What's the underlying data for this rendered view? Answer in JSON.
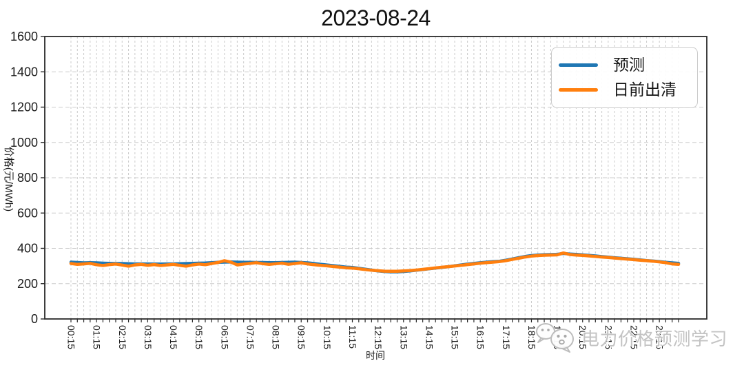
{
  "watermark": {
    "text": "电力价格预测学习",
    "icon": "wechat-icon"
  },
  "style": {
    "grid_color": "#cbcbcb",
    "spine_color": "#2a2a2a",
    "tick_text_color": "#1b1b1b",
    "legend_border_color": "#cccccc",
    "predict_color": "#1f77b4",
    "clearing_color": "#ff7f0e"
  },
  "chart_data": {
    "type": "line",
    "title": "2023-08-24",
    "xlabel": "时间",
    "ylabel": "价格(元/MWh)",
    "ylim": [
      0,
      1600
    ],
    "yticks": [
      0,
      200,
      400,
      600,
      800,
      1000,
      1200,
      1400,
      1600
    ],
    "grid": true,
    "legend_position": "upper right",
    "x": [
      "00:15",
      "00:30",
      "00:45",
      "01:00",
      "01:15",
      "01:30",
      "01:45",
      "02:00",
      "02:15",
      "02:30",
      "02:45",
      "03:00",
      "03:15",
      "03:30",
      "03:45",
      "04:00",
      "04:15",
      "04:30",
      "04:45",
      "05:00",
      "05:15",
      "05:30",
      "05:45",
      "06:00",
      "06:15",
      "06:30",
      "06:45",
      "07:00",
      "07:15",
      "07:30",
      "07:45",
      "08:00",
      "08:15",
      "08:30",
      "08:45",
      "09:00",
      "09:15",
      "09:30",
      "09:45",
      "10:00",
      "10:15",
      "10:30",
      "10:45",
      "11:00",
      "11:15",
      "11:30",
      "11:45",
      "12:00",
      "12:15",
      "12:30",
      "12:45",
      "13:00",
      "13:15",
      "13:30",
      "13:45",
      "14:00",
      "14:15",
      "14:30",
      "14:45",
      "15:00",
      "15:15",
      "15:30",
      "15:45",
      "16:00",
      "16:15",
      "16:30",
      "16:45",
      "17:00",
      "17:15",
      "17:30",
      "17:45",
      "18:00",
      "18:15",
      "18:30",
      "18:45",
      "19:00",
      "19:15",
      "19:30",
      "19:45",
      "20:00",
      "20:15",
      "20:30",
      "20:45",
      "21:00",
      "21:15",
      "21:30",
      "21:45",
      "22:00",
      "22:15",
      "22:30",
      "22:45",
      "23:00",
      "23:15",
      "23:30",
      "23:45",
      "24:00"
    ],
    "x_tick_indices": [
      0,
      4,
      8,
      12,
      16,
      20,
      24,
      28,
      32,
      36,
      40,
      44,
      48,
      52,
      56,
      60,
      64,
      68,
      72,
      76,
      80,
      84,
      88,
      92
    ],
    "x_tick_labels": [
      "00:15",
      "01:15",
      "02:15",
      "03:15",
      "04:15",
      "05:15",
      "06:15",
      "07:15",
      "08:15",
      "09:15",
      "10:15",
      "11:15",
      "12:15",
      "13:15",
      "14:15",
      "15:15",
      "16:15",
      "17:15",
      "18:15",
      "19:15",
      "20:15",
      "21:15",
      "22:15",
      "23:15"
    ],
    "series": [
      {
        "name": "预测",
        "color": "#1f77b4",
        "values": [
          322,
          320,
          318,
          319,
          318,
          316,
          315,
          314,
          314,
          313,
          312,
          312,
          312,
          311,
          311,
          312,
          312,
          313,
          314,
          315,
          316,
          317,
          319,
          321,
          322,
          323,
          322,
          321,
          321,
          320,
          320,
          319,
          319,
          320,
          321,
          322,
          320,
          318,
          314,
          310,
          306,
          302,
          298,
          294,
          292,
          287,
          282,
          277,
          272,
          269,
          267,
          267,
          269,
          272,
          276,
          280,
          284,
          288,
          292,
          296,
          301,
          306,
          311,
          315,
          319,
          322,
          325,
          327,
          333,
          340,
          347,
          354,
          359,
          362,
          364,
          365,
          366,
          371,
          368,
          366,
          363,
          360,
          357,
          353,
          350,
          347,
          344,
          341,
          338,
          335,
          331,
          328,
          325,
          321,
          318,
          315
        ]
      },
      {
        "name": "日前出清",
        "color": "#ff7f0e",
        "values": [
          314,
          309,
          312,
          315,
          307,
          303,
          308,
          311,
          305,
          299,
          306,
          309,
          304,
          308,
          303,
          306,
          309,
          304,
          299,
          306,
          311,
          307,
          314,
          320,
          330,
          322,
          306,
          311,
          315,
          319,
          313,
          309,
          313,
          316,
          310,
          314,
          318,
          312,
          307,
          304,
          301,
          297,
          294,
          290,
          288,
          284,
          280,
          276,
          273,
          271,
          270,
          270,
          272,
          274,
          277,
          281,
          285,
          289,
          293,
          296,
          300,
          304,
          308,
          312,
          316,
          319,
          322,
          325,
          330,
          337,
          344,
          351,
          356,
          359,
          361,
          362,
          363,
          374,
          365,
          362,
          360,
          357,
          354,
          351,
          348,
          345,
          342,
          339,
          336,
          333,
          330,
          327,
          323,
          319,
          312,
          309
        ]
      }
    ]
  }
}
